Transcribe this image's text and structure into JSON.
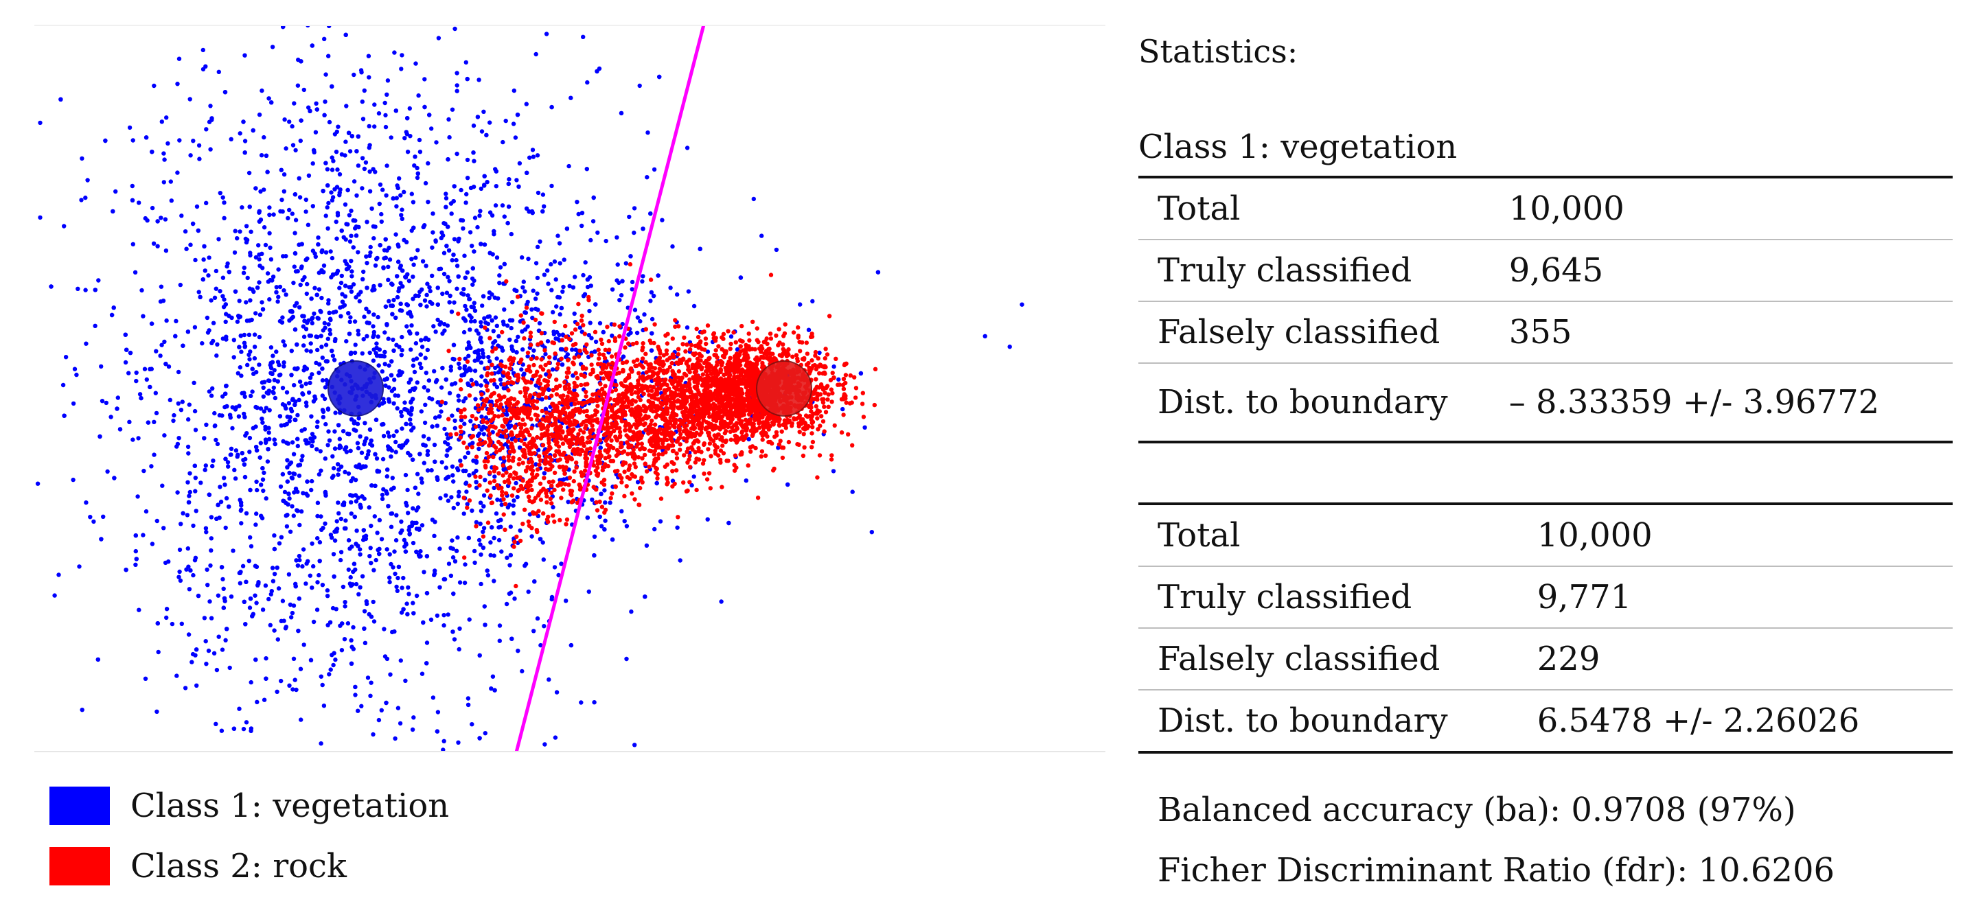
{
  "chart_data": {
    "type": "scatter",
    "title": "",
    "xlabel": "",
    "ylabel": "",
    "xlim": [
      -4,
      4
    ],
    "ylim": [
      -3,
      3
    ],
    "grid": false,
    "legend_position": "bottom-left",
    "series": [
      {
        "name": "Class 1: vegetation",
        "color": "#0000ff",
        "count": 10000,
        "center": [
          -1.6,
          0.0
        ],
        "spread": [
          0.9,
          1.3
        ]
      },
      {
        "name": "Class 2: rock",
        "color": "#ff0000",
        "count": 10000,
        "center": [
          1.6,
          0.0
        ],
        "spread": [
          0.25,
          0.18
        ]
      }
    ],
    "boundary": {
      "label": "decision boundary",
      "color": "#ff00ff",
      "points": [
        [
          -0.4,
          -3.0
        ],
        [
          1.0,
          3.0
        ]
      ]
    },
    "centroids": [
      {
        "class": "Class 1: vegetation",
        "x": -1.6,
        "y": 0.0
      },
      {
        "class": "Class 2: rock",
        "x": 1.6,
        "y": 0.0
      }
    ]
  },
  "legend": {
    "class1": "Class 1: vegetation",
    "class2": "Class 2: rock",
    "class1_color": "#0000ff",
    "class2_color": "#ff0000"
  },
  "stats": {
    "title": "Statistics:",
    "class1_title": "Class 1: vegetation",
    "class1_rows": [
      {
        "label": "Total",
        "value": "10,000"
      },
      {
        "label": "Truly classified",
        "value": "9,645"
      },
      {
        "label": "Falsely classified",
        "value": "355"
      },
      {
        "label": "Dist. to boundary",
        "value": "– 8.33359 +/- 3.96772"
      }
    ],
    "class2_rows": [
      {
        "label": "Total",
        "value": "10,000"
      },
      {
        "label": "Truly classified",
        "value": "9,771"
      },
      {
        "label": "Falsely classified",
        "value": "229"
      },
      {
        "label": "Dist. to boundary",
        "value": "6.5478 +/- 2.26026"
      }
    ],
    "balanced_accuracy": "Balanced accuracy (ba): 0.9708 (97%)",
    "fdr": "Ficher Discriminant Ratio (fdr): 10.6206"
  }
}
